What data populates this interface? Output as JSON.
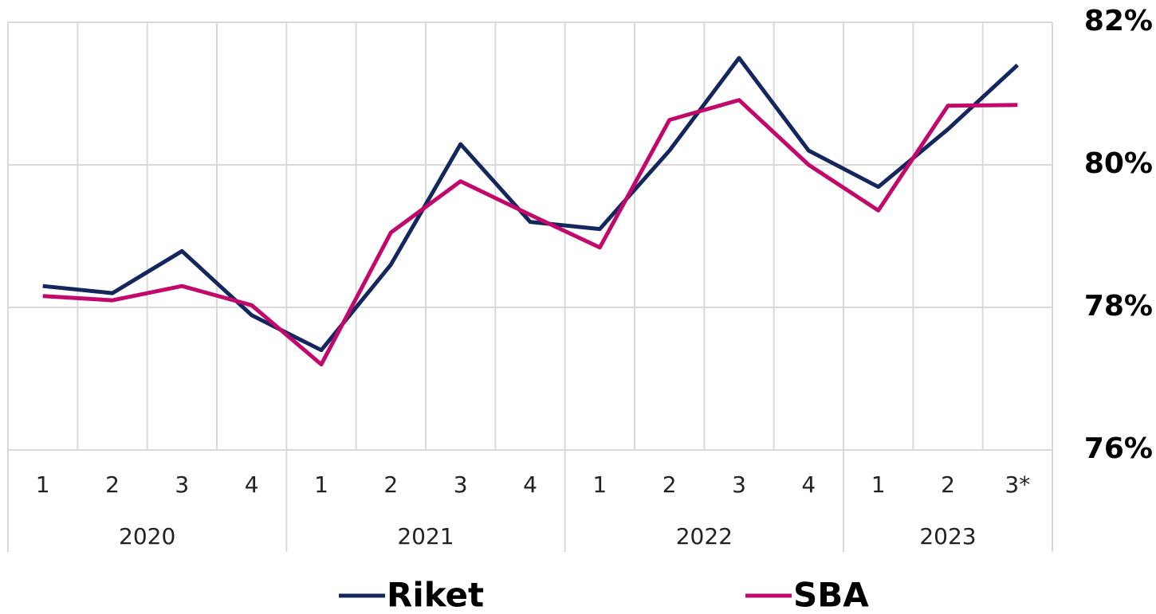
{
  "chart_data": {
    "type": "line",
    "categories": [
      "1",
      "2",
      "3",
      "4",
      "1",
      "2",
      "3",
      "4",
      "1",
      "2",
      "3",
      "4",
      "1",
      "2",
      "3*"
    ],
    "years": [
      "2020",
      "2021",
      "2022",
      "2023"
    ],
    "series": [
      {
        "name": "Riket",
        "color": "#13275e",
        "values": [
          78.3,
          78.2,
          78.79,
          77.89,
          77.4,
          78.6,
          80.29,
          79.2,
          79.1,
          80.2,
          81.5,
          80.2,
          79.69,
          80.5,
          81.4
        ]
      },
      {
        "name": "SBA",
        "color": "#c2086b",
        "values": [
          78.16,
          78.1,
          78.3,
          78.03,
          77.2,
          79.05,
          79.77,
          79.3,
          78.84,
          80.63,
          80.91,
          80.0,
          79.36,
          80.83,
          80.84
        ]
      }
    ],
    "ylim": [
      76,
      82
    ],
    "yticks": [
      {
        "value": 76,
        "label": "76%"
      },
      {
        "value": 78,
        "label": "78%"
      },
      {
        "value": 80,
        "label": "80%"
      },
      {
        "value": 82,
        "label": "82%"
      }
    ],
    "grid": true,
    "legend": "bottom"
  }
}
